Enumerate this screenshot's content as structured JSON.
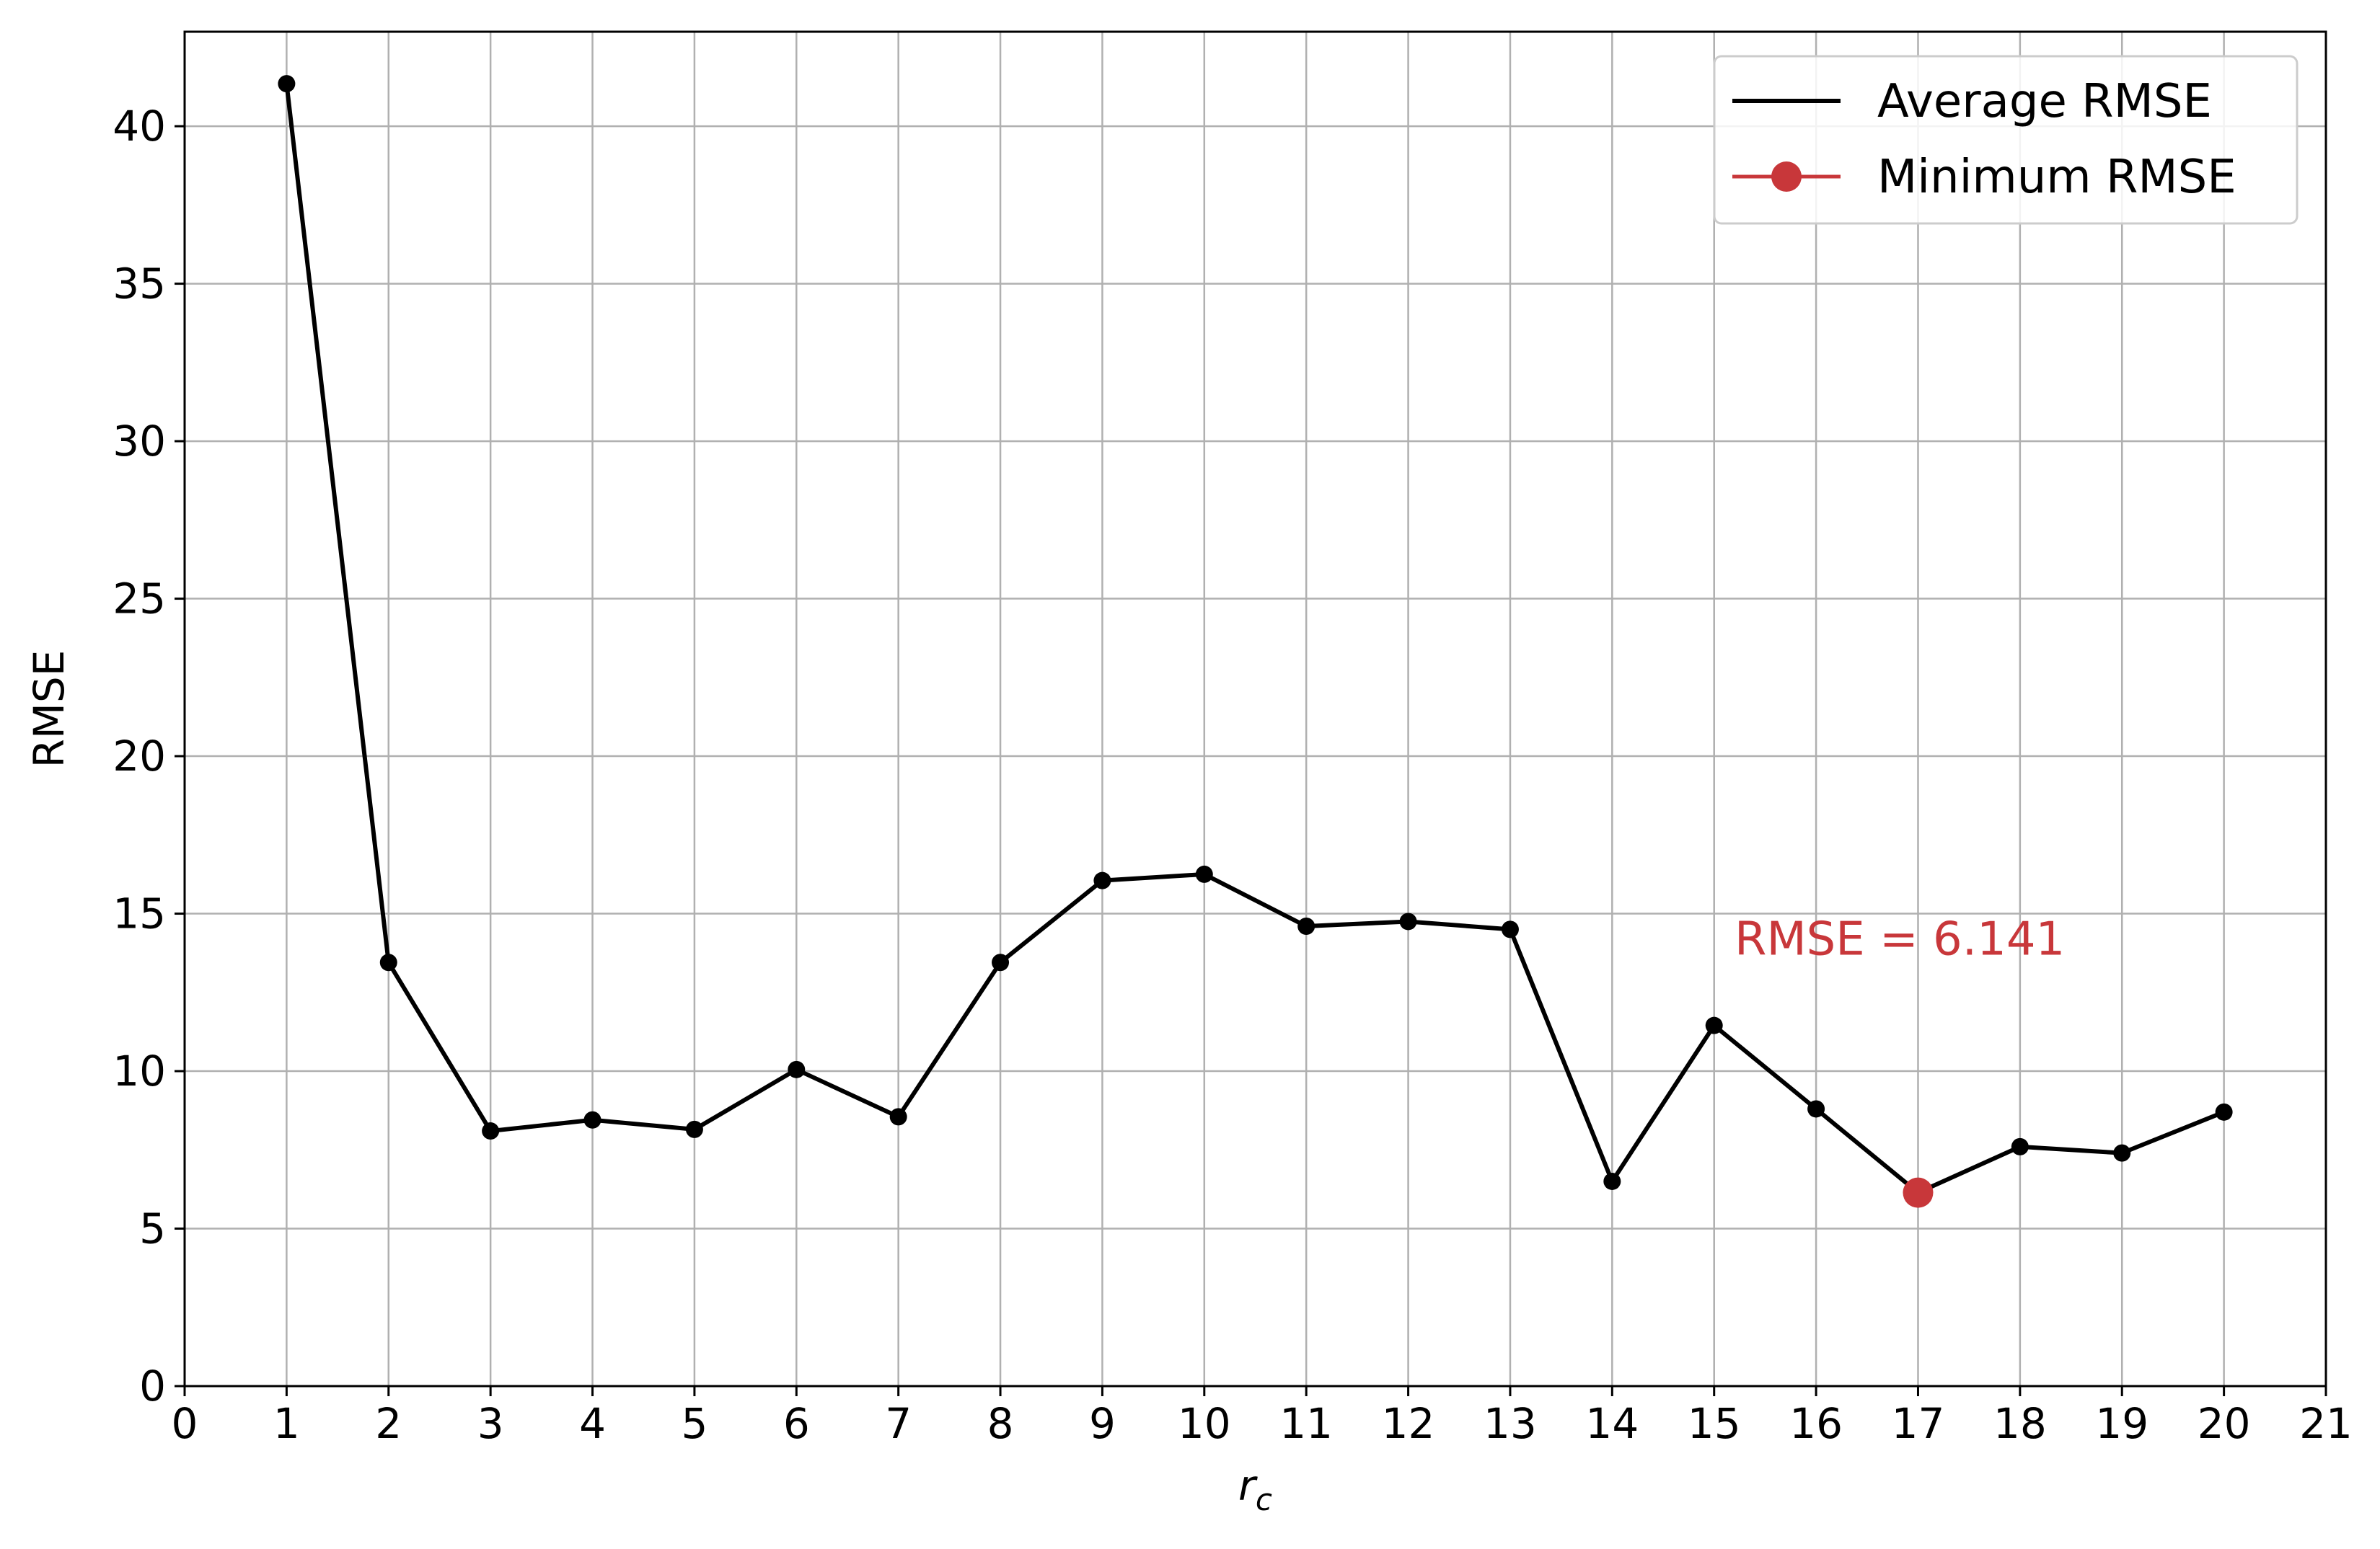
{
  "chart_data": {
    "type": "line",
    "xlabel_main": "r",
    "xlabel_sub": "c",
    "ylabel": "RMSE",
    "xlim": [
      0,
      21
    ],
    "ylim": [
      0,
      43
    ],
    "xticks": [
      0,
      1,
      2,
      3,
      4,
      5,
      6,
      7,
      8,
      9,
      10,
      11,
      12,
      13,
      14,
      15,
      16,
      17,
      18,
      19,
      20,
      21
    ],
    "yticks": [
      0,
      5,
      10,
      15,
      20,
      25,
      30,
      35,
      40
    ],
    "grid": true,
    "legend_position": "top-right",
    "x": [
      1,
      2,
      3,
      4,
      5,
      6,
      7,
      8,
      9,
      10,
      11,
      12,
      13,
      14,
      15,
      16,
      17,
      18,
      19,
      20
    ],
    "series": [
      {
        "name": "Average RMSE",
        "color": "#000000",
        "values": [
          41.35,
          13.45,
          8.1,
          8.45,
          8.15,
          10.05,
          8.55,
          13.45,
          16.05,
          16.25,
          14.6,
          14.75,
          14.5,
          6.5,
          11.45,
          8.8,
          6.141,
          7.6,
          7.4,
          8.7
        ]
      }
    ],
    "legend": [
      {
        "label": "Average RMSE",
        "color": "#000000",
        "marker": "none"
      },
      {
        "label": "Minimum RMSE",
        "color": "#c8373a",
        "marker": "circle"
      }
    ],
    "minimum": {
      "x": 17,
      "y": 6.141,
      "color": "#c8373a"
    },
    "annotation": {
      "text": "RMSE = 6.141",
      "x": 15.2,
      "y": 13.7,
      "color": "#c8373a"
    }
  }
}
